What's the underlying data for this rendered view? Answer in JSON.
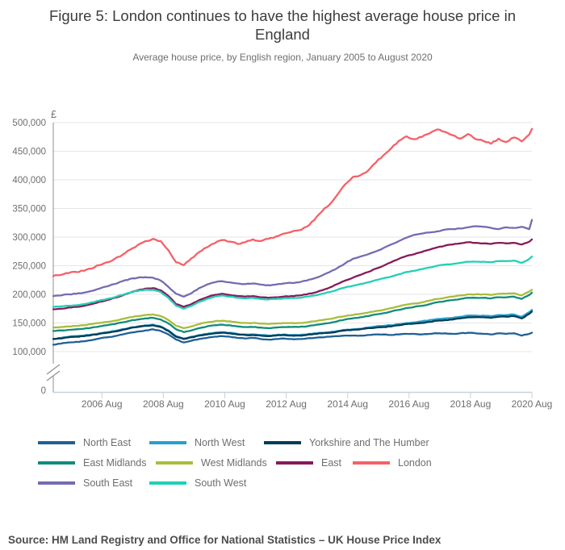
{
  "header": {
    "title": "Figure 5: London continues to have the highest average house price in England",
    "subtitle": "Average house price, by English region, January 2005 to August 2020"
  },
  "footer": {
    "source": "Source: HM Land Registry and Office for National Statistics – UK House Price Index"
  },
  "chart_data": {
    "type": "line",
    "title": "Figure 5: London continues to have the highest average house price in England",
    "subtitle": "Average house price, by English region, January 2005 to August 2020",
    "currency_label": "£",
    "values_unit": "GBP thousands (£k)",
    "x_unit": "month",
    "x_start": "2005-01",
    "x_end": "2020-08",
    "sampling": "quarterly (Jan, Apr, Jul, Oct of each year 2005-2020) plus final point Aug 2020; 64 points per series",
    "x_tick_labels": [
      "2006 Aug",
      "2008 Aug",
      "2010 Aug",
      "2012 Aug",
      "2014 Aug",
      "2016 Aug",
      "2018 Aug",
      "2020 Aug"
    ],
    "x_tick_months": [
      19,
      43,
      67,
      91,
      115,
      139,
      163,
      187
    ],
    "x_total_months": 187,
    "y_ticks": [
      {
        "label": "500,000",
        "value": 500
      },
      {
        "label": "450,000",
        "value": 450
      },
      {
        "label": "400,000",
        "value": 400
      },
      {
        "label": "350,000",
        "value": 350
      },
      {
        "label": "300,000",
        "value": 300
      },
      {
        "label": "250,000",
        "value": 250
      },
      {
        "label": "200,000",
        "value": 200
      },
      {
        "label": "150,000",
        "value": 150
      },
      {
        "label": "100,000",
        "value": 100
      },
      {
        "label": "0",
        "value": 0
      }
    ],
    "ylim": [
      100,
      500
    ],
    "axis_break": true,
    "grid": true,
    "legend_position": "bottom",
    "series": [
      {
        "name": "North East",
        "color": "#206095",
        "values_k": [
          112,
          114,
          116,
          117,
          118,
          120,
          123,
          125,
          127,
          130,
          133,
          135,
          137,
          139,
          136,
          130,
          121,
          116,
          119,
          122,
          124,
          126,
          127,
          126,
          124,
          123,
          124,
          122,
          121,
          122,
          123,
          122,
          122,
          123,
          124,
          125,
          126,
          127,
          128,
          128,
          128,
          129,
          130,
          130,
          129,
          130,
          131,
          131,
          130,
          131,
          132,
          132,
          131,
          132,
          133,
          132,
          131,
          130,
          132,
          131,
          132,
          128,
          131,
          133
        ]
      },
      {
        "name": "North West",
        "color": "#27A0CC",
        "values_k": [
          122,
          124,
          126,
          127,
          128,
          130,
          132,
          134,
          136,
          139,
          142,
          144,
          146,
          147,
          144,
          137,
          127,
          123,
          126,
          129,
          131,
          133,
          134,
          133,
          131,
          130,
          130,
          129,
          128,
          129,
          130,
          129,
          129,
          130,
          132,
          133,
          134,
          136,
          138,
          139,
          140,
          142,
          144,
          145,
          146,
          148,
          150,
          151,
          153,
          155,
          157,
          158,
          159,
          161,
          163,
          163,
          163,
          162,
          164,
          164,
          165,
          161,
          169,
          173
        ]
      },
      {
        "name": "Yorkshire and The Humber",
        "color": "#003C57",
        "values_k": [
          122,
          123,
          125,
          126,
          127,
          129,
          131,
          133,
          135,
          138,
          141,
          143,
          145,
          146,
          143,
          136,
          126,
          122,
          125,
          128,
          130,
          132,
          133,
          132,
          130,
          129,
          129,
          128,
          127,
          128,
          129,
          128,
          128,
          129,
          131,
          132,
          133,
          135,
          137,
          138,
          139,
          141,
          142,
          143,
          144,
          146,
          148,
          149,
          150,
          152,
          154,
          155,
          156,
          158,
          160,
          160,
          160,
          159,
          161,
          161,
          162,
          158,
          166,
          170
        ]
      },
      {
        "name": "East Midlands",
        "color": "#118C7B",
        "values_k": [
          136,
          137,
          138,
          139,
          140,
          142,
          144,
          146,
          148,
          151,
          154,
          156,
          158,
          159,
          156,
          149,
          139,
          134,
          137,
          141,
          144,
          146,
          147,
          146,
          144,
          143,
          143,
          142,
          141,
          142,
          143,
          143,
          143,
          144,
          146,
          148,
          150,
          153,
          156,
          158,
          160,
          162,
          165,
          167,
          170,
          173,
          176,
          178,
          180,
          183,
          186,
          188,
          190,
          192,
          194,
          194,
          194,
          193,
          195,
          195,
          196,
          192,
          199,
          203
        ]
      },
      {
        "name": "West Midlands",
        "color": "#A8BD3A",
        "values_k": [
          142,
          143,
          144,
          145,
          146,
          148,
          150,
          152,
          154,
          157,
          160,
          162,
          164,
          165,
          162,
          155,
          145,
          141,
          144,
          148,
          151,
          153,
          154,
          153,
          151,
          150,
          150,
          149,
          148,
          149,
          150,
          150,
          150,
          151,
          153,
          155,
          157,
          160,
          162,
          164,
          166,
          168,
          171,
          173,
          176,
          179,
          182,
          184,
          186,
          189,
          192,
          194,
          196,
          198,
          200,
          200,
          200,
          199,
          201,
          201,
          202,
          198,
          205,
          208
        ]
      },
      {
        "name": "East",
        "color": "#871A5B",
        "values_k": [
          174,
          175,
          177,
          178,
          180,
          183,
          187,
          190,
          194,
          198,
          203,
          207,
          210,
          211,
          207,
          197,
          183,
          178,
          183,
          190,
          195,
          199,
          201,
          199,
          197,
          196,
          197,
          195,
          194,
          195,
          196,
          197,
          198,
          200,
          203,
          207,
          212,
          218,
          224,
          229,
          234,
          239,
          245,
          250,
          256,
          262,
          267,
          270,
          274,
          278,
          282,
          285,
          287,
          289,
          291,
          290,
          289,
          288,
          290,
          289,
          290,
          287,
          292,
          296
        ]
      },
      {
        "name": "London",
        "color": "#F66068",
        "values_k": [
          232,
          234,
          237,
          239,
          241,
          245,
          251,
          256,
          262,
          269,
          278,
          286,
          293,
          297,
          293,
          277,
          256,
          251,
          263,
          274,
          282,
          289,
          295,
          292,
          288,
          291,
          296,
          293,
          297,
          301,
          306,
          309,
          312,
          318,
          330,
          345,
          357,
          374,
          392,
          405,
          408,
          416,
          430,
          443,
          455,
          468,
          476,
          471,
          475,
          481,
          488,
          484,
          478,
          472,
          480,
          471,
          468,
          463,
          472,
          466,
          474,
          467,
          479,
          489
        ]
      },
      {
        "name": "South East",
        "color": "#746CB1",
        "values_k": [
          197,
          198,
          200,
          201,
          203,
          206,
          210,
          214,
          218,
          223,
          227,
          229,
          230,
          229,
          224,
          213,
          201,
          196,
          202,
          211,
          217,
          221,
          223,
          221,
          219,
          218,
          219,
          217,
          216,
          217,
          219,
          220,
          221,
          224,
          228,
          233,
          239,
          246,
          254,
          262,
          266,
          270,
          275,
          281,
          287,
          293,
          299,
          304,
          306,
          308,
          310,
          313,
          314,
          315,
          317,
          319,
          318,
          316,
          314,
          317,
          316,
          318,
          314,
          330
        ]
      },
      {
        "name": "South West",
        "color": "#22D0B6",
        "values_k": [
          178,
          179,
          180,
          181,
          183,
          186,
          189,
          192,
          195,
          199,
          203,
          206,
          208,
          208,
          204,
          194,
          180,
          175,
          180,
          187,
          192,
          196,
          198,
          196,
          194,
          193,
          194,
          192,
          191,
          192,
          193,
          194,
          194,
          196,
          198,
          201,
          204,
          208,
          212,
          215,
          218,
          221,
          225,
          228,
          231,
          235,
          239,
          241,
          244,
          247,
          250,
          252,
          253,
          255,
          257,
          257,
          257,
          256,
          258,
          258,
          259,
          255,
          262,
          266
        ]
      }
    ]
  }
}
